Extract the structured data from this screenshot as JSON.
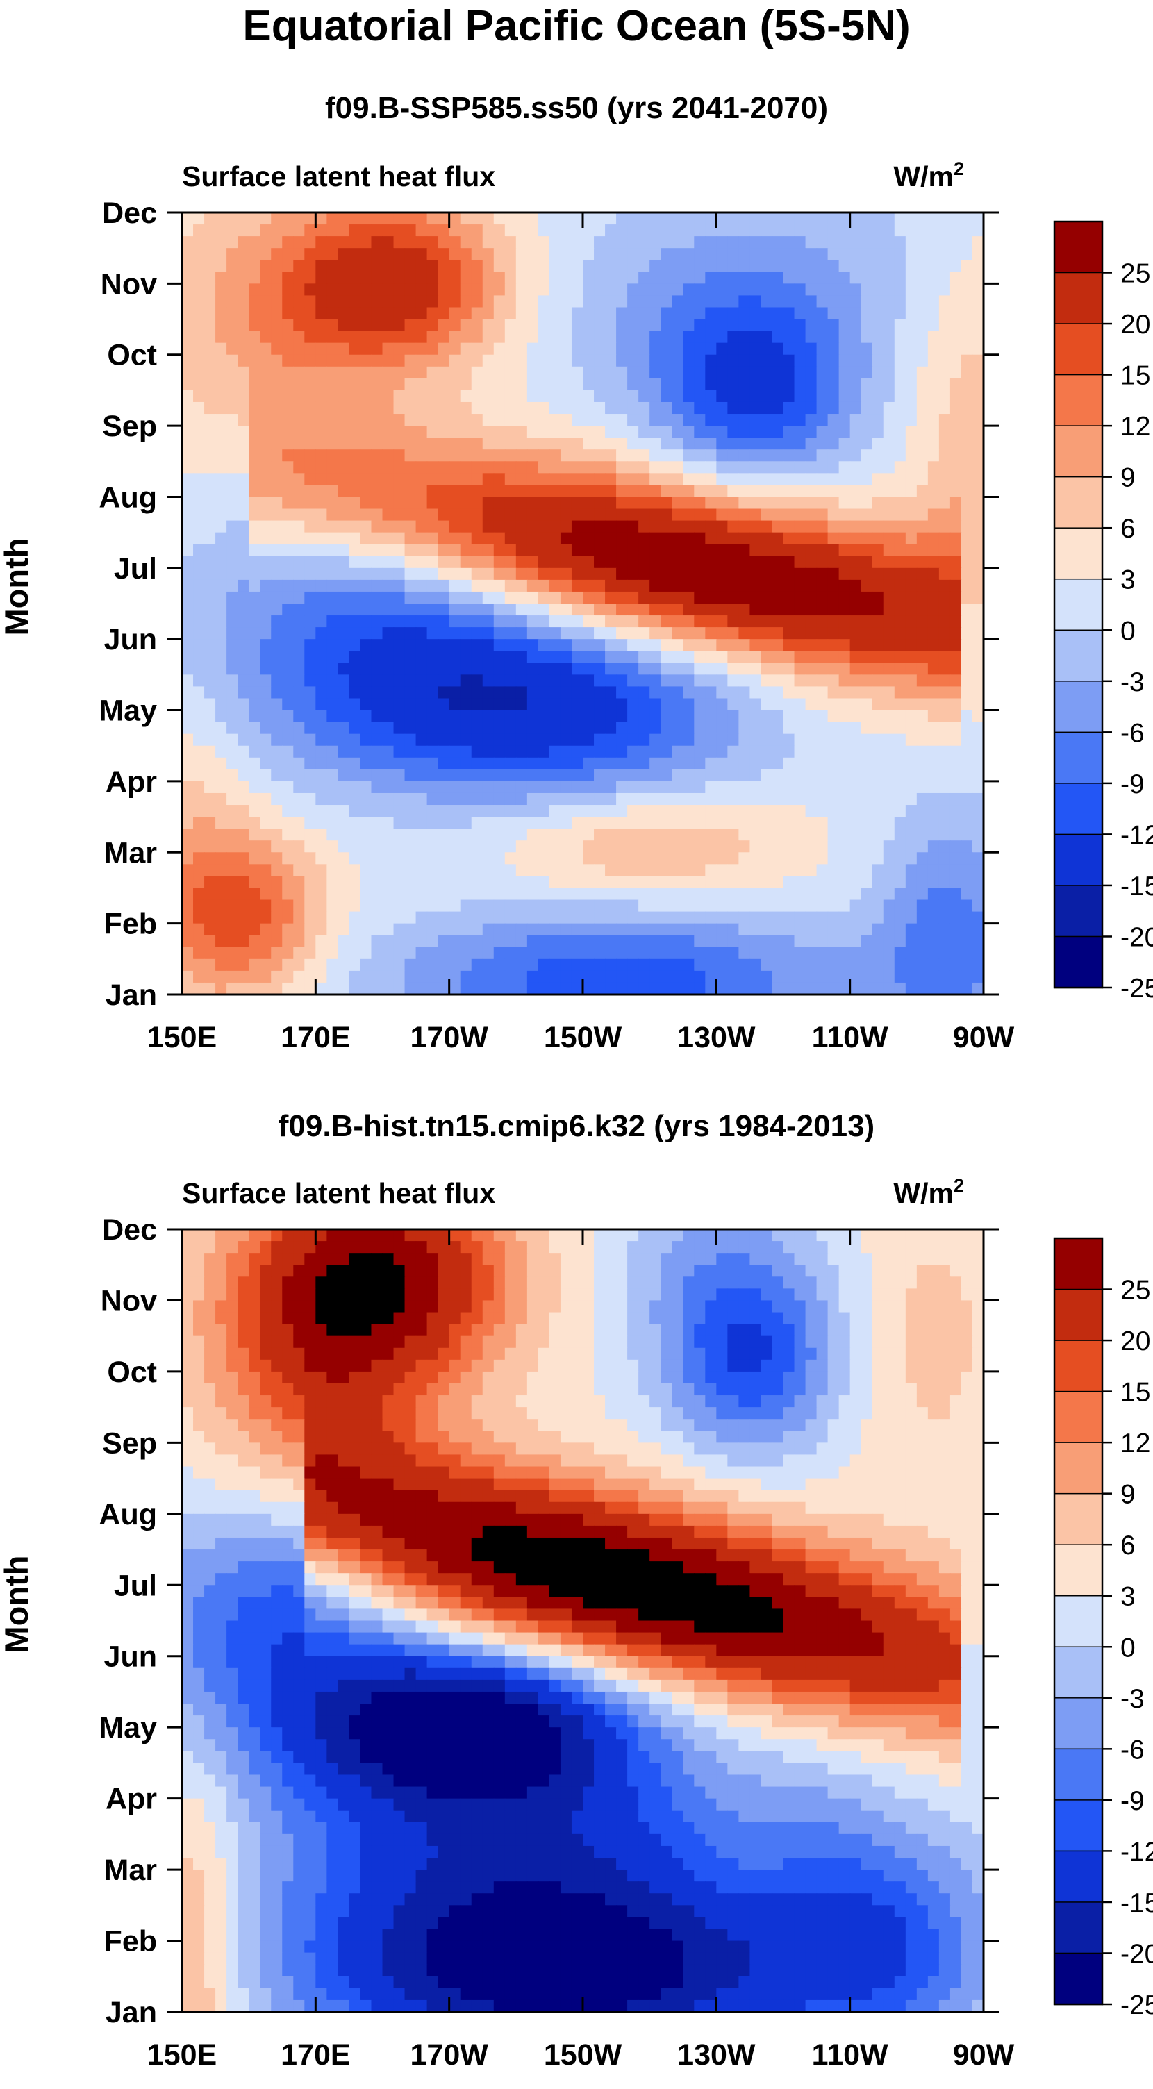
{
  "figure": {
    "title": "Equatorial Pacific Ocean (5S-5N)"
  },
  "chart_data": [
    {
      "type": "heatmap",
      "title": "f09.B-SSP585.ss50 (yrs 2041-2070)",
      "left_label": "Surface latent heat flux",
      "right_label": "W/m",
      "right_label_sup": "2",
      "ylabel": "Month",
      "xlabel": "",
      "x_ticks": [
        "150E",
        "170E",
        "170W",
        "150W",
        "130W",
        "110W",
        "90W"
      ],
      "x_tick_values": [
        150,
        170,
        190,
        210,
        230,
        250,
        270
      ],
      "xlim": [
        150,
        270
      ],
      "y_ticks": [
        "Jan",
        "Feb",
        "Mar",
        "Apr",
        "May",
        "Jun",
        "Jul",
        "Aug",
        "Sep",
        "Oct",
        "Nov",
        "Dec"
      ],
      "ylim": [
        1,
        12
      ],
      "levels": [
        -25,
        -20,
        -15,
        -12,
        -9,
        -6,
        -3,
        0,
        3,
        6,
        9,
        12,
        15,
        20,
        25
      ],
      "colors": [
        "#00007f",
        "#0a1fa6",
        "#0f34d6",
        "#2356f5",
        "#4a78f5",
        "#7d9df4",
        "#a9c0f7",
        "#d4e2fb",
        "#fde3d0",
        "#fbc4a6",
        "#f89e76",
        "#f4774a",
        "#e54e22",
        "#c22c0f",
        "#950000"
      ],
      "features": [
        {
          "lon": 182,
          "month": 11.0,
          "value": 18,
          "slon": 12,
          "smon": 0.8
        },
        {
          "lon": 163,
          "month": 10.4,
          "value": 6,
          "slon": 14,
          "smon": 1.3
        },
        {
          "lon": 236,
          "month": 9.5,
          "value": -15,
          "slon": 11,
          "smon": 1.0
        },
        {
          "lon": 222,
          "month": 10.8,
          "value": -5,
          "slon": 18,
          "smon": 1.2
        },
        {
          "lon": 160,
          "month": 2.1,
          "value": 13,
          "slon": 8,
          "smon": 0.8
        },
        {
          "lon": 152,
          "month": 3.0,
          "value": 5,
          "slon": 6,
          "smon": 1.5
        },
        {
          "lon": 220,
          "month": 3.1,
          "value": 7,
          "slon": 14,
          "smon": 0.5
        },
        {
          "lon": 205,
          "month": 5.0,
          "value": -16,
          "slon": 22,
          "smon": 0.9
        },
        {
          "lon": 180,
          "month": 6.2,
          "value": -12,
          "slon": 20,
          "smon": 1.3
        },
        {
          "lon": 215,
          "month": 1.2,
          "value": -14,
          "slon": 25,
          "smon": 0.7
        },
        {
          "lon": 265,
          "month": 1.8,
          "value": -10,
          "slon": 8,
          "smon": 1.4
        },
        {
          "lon": 250,
          "month": 11.5,
          "value": -3,
          "slon": 15,
          "smon": 1.0
        },
        {
          "lon": 268,
          "month": 8.5,
          "value": 5,
          "slon": 6,
          "smon": 2.0
        }
      ],
      "band": {
        "value": 26,
        "lon0": 165,
        "lon1": 262,
        "month0": 8.2,
        "month1": 6.3,
        "width_months": 0.8,
        "lon_center": 225,
        "lon_spread": 42
      }
    },
    {
      "type": "heatmap",
      "title": "f09.B-hist.tn15.cmip6.k32 (yrs 1984-2013)",
      "left_label": "Surface latent heat flux",
      "right_label": "W/m",
      "right_label_sup": "2",
      "ylabel": "Month",
      "xlabel": "",
      "x_ticks": [
        "150E",
        "170E",
        "170W",
        "150W",
        "130W",
        "110W",
        "90W"
      ],
      "x_tick_values": [
        150,
        170,
        190,
        210,
        230,
        250,
        270
      ],
      "xlim": [
        150,
        270
      ],
      "y_ticks": [
        "Jan",
        "Feb",
        "Mar",
        "Apr",
        "May",
        "Jun",
        "Jul",
        "Aug",
        "Sep",
        "Oct",
        "Nov",
        "Dec"
      ],
      "ylim": [
        1,
        12
      ],
      "levels": [
        -25,
        -20,
        -15,
        -12,
        -9,
        -6,
        -3,
        0,
        3,
        6,
        9,
        12,
        15,
        20,
        25
      ],
      "colors": [
        "#00007f",
        "#0a1fa6",
        "#0f34d6",
        "#2356f5",
        "#4a78f5",
        "#7d9df4",
        "#a9c0f7",
        "#d4e2fb",
        "#fde3d0",
        "#fbc4a6",
        "#f89e76",
        "#f4774a",
        "#e54e22",
        "#c22c0f",
        "#950000"
      ],
      "features": [
        {
          "lon": 180,
          "month": 11.3,
          "value": 22,
          "slon": 14,
          "smon": 1.0
        },
        {
          "lon": 170,
          "month": 9.8,
          "value": 12,
          "slon": 12,
          "smon": 1.5
        },
        {
          "lon": 235,
          "month": 10.1,
          "value": -14,
          "slon": 9,
          "smon": 0.9
        },
        {
          "lon": 230,
          "month": 11.5,
          "value": -6,
          "slon": 12,
          "smon": 0.9
        },
        {
          "lon": 192,
          "month": 5.0,
          "value": -26,
          "slon": 15,
          "smon": 0.7
        },
        {
          "lon": 200,
          "month": 3.0,
          "value": -20,
          "slon": 25,
          "smon": 1.6
        },
        {
          "lon": 210,
          "month": 1.5,
          "value": -20,
          "slon": 25,
          "smon": 0.8
        },
        {
          "lon": 165,
          "month": 6.5,
          "value": -14,
          "slon": 15,
          "smon": 1.3
        },
        {
          "lon": 152,
          "month": 2.0,
          "value": 8,
          "slon": 5,
          "smon": 1.8
        },
        {
          "lon": 245,
          "month": 3.5,
          "value": -2,
          "slon": 7,
          "smon": 1.0
        },
        {
          "lon": 262,
          "month": 10.5,
          "value": 4,
          "slon": 8,
          "smon": 1.6
        },
        {
          "lon": 255,
          "month": 2.0,
          "value": -12,
          "slon": 12,
          "smon": 1.2
        }
      ],
      "band": {
        "value": 30,
        "lon0": 172,
        "lon1": 262,
        "month0": 8.0,
        "month1": 6.0,
        "width_months": 0.85,
        "lon_center": 215,
        "lon_spread": 45
      }
    }
  ]
}
